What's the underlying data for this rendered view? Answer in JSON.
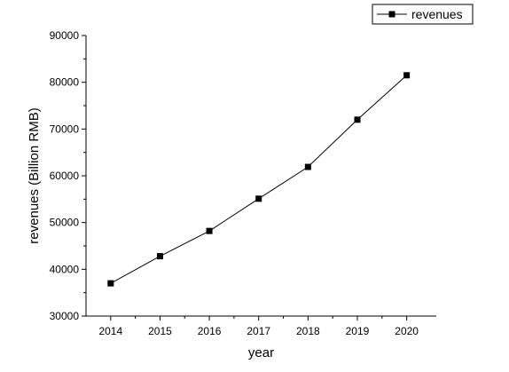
{
  "chart_data": {
    "type": "line",
    "x": [
      2014,
      2015,
      2016,
      2017,
      2018,
      2019,
      2020
    ],
    "series": [
      {
        "name": "revenues",
        "values": [
          37000,
          42800,
          48200,
          55100,
          61900,
          72000,
          81500
        ]
      }
    ],
    "xlabel": "year",
    "ylabel": "revenues (Billion RMB)",
    "xticks": [
      "2014",
      "2015",
      "2016",
      "2017",
      "2018",
      "2019",
      "2020"
    ],
    "yticks": [
      "30000",
      "40000",
      "50000",
      "60000",
      "70000",
      "80000",
      "90000"
    ],
    "xlim": [
      2013.5,
      2020.6
    ],
    "ylim": [
      30000,
      90000
    ],
    "legend": "top-right",
    "grid": false,
    "marker": "square",
    "color": "#000000"
  }
}
